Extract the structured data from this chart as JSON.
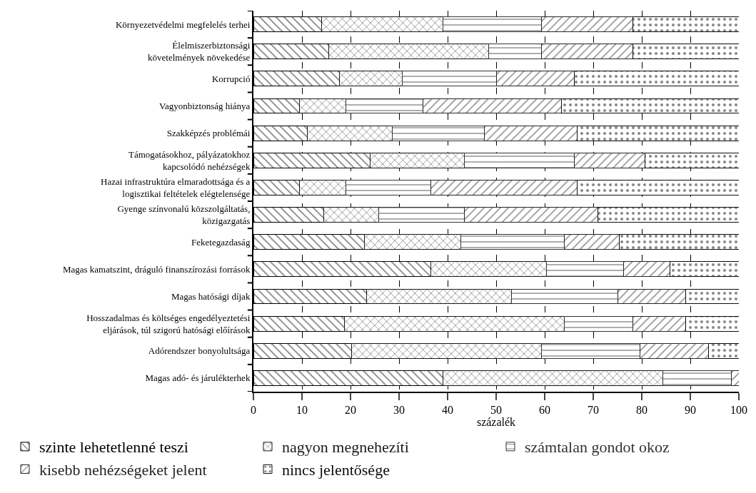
{
  "chart_data": {
    "type": "bar",
    "orientation": "horizontal",
    "stacked": true,
    "xlabel": "százalék",
    "xlim": [
      0,
      100
    ],
    "xticks": [
      0,
      10,
      20,
      30,
      40,
      50,
      60,
      70,
      80,
      90,
      100
    ],
    "grid": "x",
    "legend": "bottom",
    "categories": [
      "Környezetvédelmi megfelelés terhei",
      "Élelmiszerbiztonsági\nkövetelmények növekedése",
      "Korrupció",
      "Vagyonbiztonság hiánya",
      "Szakképzés problémái",
      "Támogatásokhoz, pályázatokhoz\nkapcsolódó nehézségek",
      "Hazai infrastruktúra elmaradottsága és a\nlogisztikai feltételek elégtelensége",
      "Gyenge színvonalú közszolgáltatás,\nközigazgatás",
      "Feketegazdaság",
      "Magas kamatszint, dráguló finanszírozási források",
      "Magas hatósági díjak",
      "Hosszadalmas és költséges engedélyeztetési\neljárások, túl szigorú hatósági előírások",
      "Adórendszer bonyolultsága",
      "Magas adó- és járulékterhek"
    ],
    "series": [
      {
        "name": "szinte lehetetlenné teszi",
        "color": "#000000",
        "values": [
          14.0,
          15.5,
          17.7,
          9.5,
          11.1,
          24.1,
          9.5,
          14.5,
          22.9,
          36.5,
          23.3,
          18.7,
          20.2,
          39.0
        ]
      },
      {
        "name": "nagyon megnehezíti",
        "color": "#1a1a1a",
        "values": [
          25.1,
          33.0,
          12.9,
          9.5,
          17.5,
          19.4,
          9.5,
          11.3,
          19.8,
          23.8,
          29.9,
          45.4,
          39.2,
          45.4
        ]
      },
      {
        "name": "számtalan gondot okoz",
        "color": "#333333",
        "values": [
          20.3,
          10.9,
          19.4,
          15.9,
          19.0,
          22.6,
          17.5,
          17.7,
          21.3,
          15.9,
          21.8,
          14.1,
          20.3,
          14.0
        ]
      },
      {
        "name": "kisebb nehézségeket jelent",
        "color": "#262626",
        "values": [
          18.8,
          18.8,
          16.1,
          28.6,
          19.1,
          14.5,
          30.2,
          27.5,
          11.4,
          9.6,
          14.1,
          10.9,
          14.1,
          1.6
        ]
      },
      {
        "name": "nincs jelentősége",
        "color": "#0d0d0d",
        "values": [
          21.8,
          21.8,
          33.9,
          36.5,
          33.3,
          19.4,
          33.3,
          29.0,
          24.6,
          14.2,
          10.9,
          10.9,
          6.2,
          0
        ]
      }
    ]
  }
}
